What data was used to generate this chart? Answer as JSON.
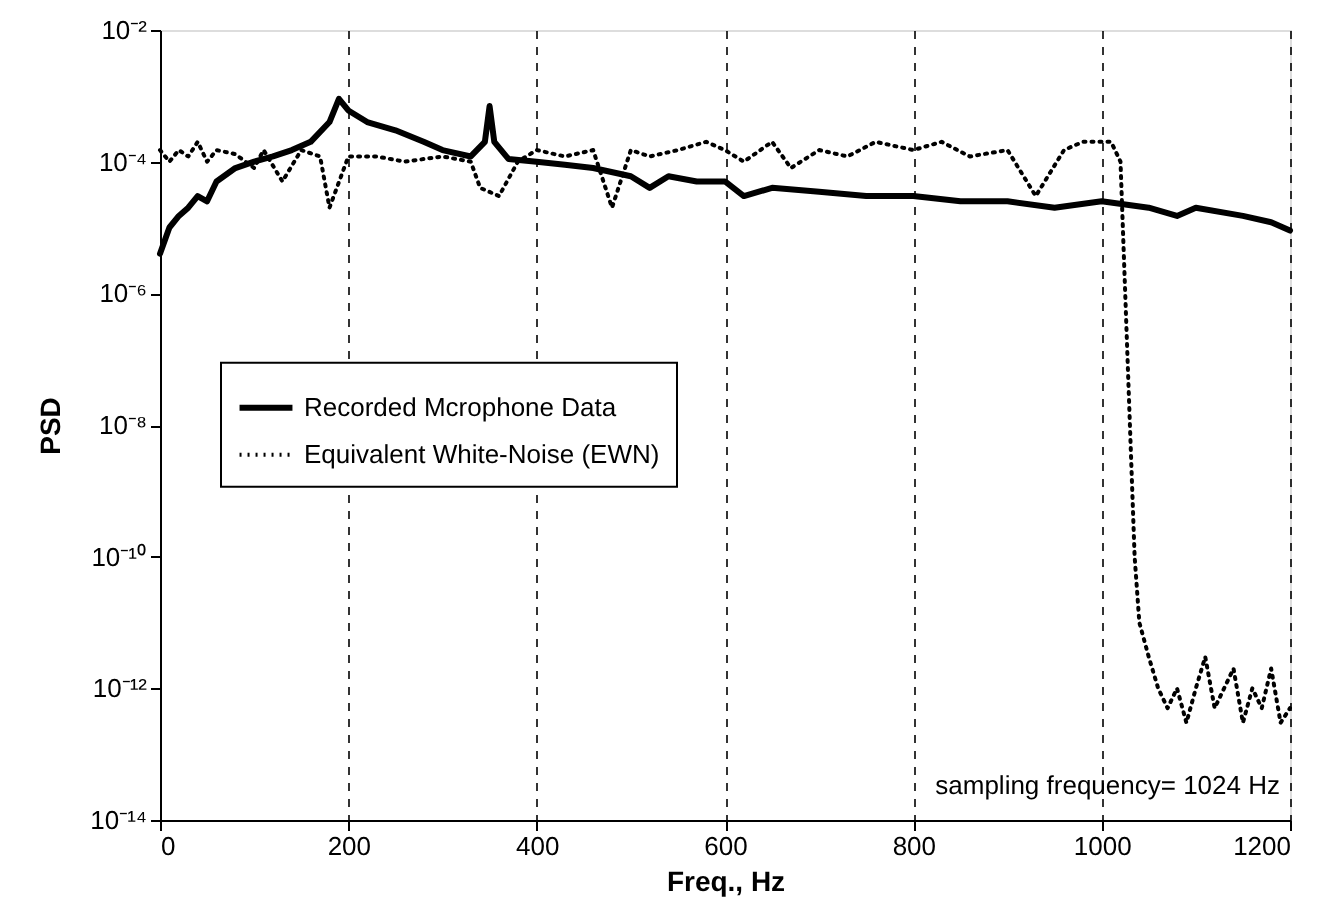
{
  "chart_data": {
    "type": "line",
    "xlabel": "Freq., Hz",
    "ylabel": "PSD",
    "log": "y",
    "xlim": [
      0,
      1200
    ],
    "xticks": [
      0,
      200,
      400,
      600,
      800,
      1000,
      1200
    ],
    "ylim": [
      1e-14,
      0.01
    ],
    "yticks": [
      {
        "value": 1e-14,
        "label": "10⁻¹⁴"
      },
      {
        "value": 1e-12,
        "label": "10⁻¹²"
      },
      {
        "value": 1e-10,
        "label": "10⁻¹⁰"
      },
      {
        "value": 1e-08,
        "label": "10⁻⁸"
      },
      {
        "value": 1e-06,
        "label": "10⁻⁶"
      },
      {
        "value": 0.0001,
        "label": "10⁻⁴"
      },
      {
        "value": 0.01,
        "label": "10⁻²"
      }
    ],
    "grid": "x",
    "legend": "left",
    "annotations": [
      "sampling frequency= 1024 Hz"
    ],
    "series": [
      {
        "name": "Recorded Mcrophone Data",
        "color": "#000000",
        "line_style": "solid",
        "x": [
          0,
          10,
          20,
          30,
          40,
          50,
          60,
          80,
          100,
          120,
          140,
          160,
          180,
          190,
          200,
          220,
          250,
          280,
          300,
          330,
          345,
          350,
          355,
          370,
          400,
          430,
          460,
          500,
          520,
          540,
          570,
          600,
          620,
          650,
          700,
          750,
          800,
          850,
          900,
          950,
          1000,
          1050,
          1080,
          1100,
          1150,
          1180,
          1200
        ],
        "values": [
          4e-06,
          1e-05,
          1.5e-05,
          2e-05,
          3e-05,
          2.5e-05,
          5e-05,
          8e-05,
          0.0001,
          0.00012,
          0.00015,
          0.0002,
          0.0004,
          0.0009,
          0.0006,
          0.0004,
          0.0003,
          0.0002,
          0.00015,
          0.00012,
          0.0002,
          0.0007,
          0.0002,
          0.00011,
          0.0001,
          9e-05,
          8e-05,
          6e-05,
          4e-05,
          6e-05,
          5e-05,
          5e-05,
          3e-05,
          4e-05,
          3.5e-05,
          3e-05,
          3e-05,
          2.5e-05,
          2.5e-05,
          2e-05,
          2.5e-05,
          2e-05,
          1.5e-05,
          2e-05,
          1.5e-05,
          1.2e-05,
          9e-06
        ]
      },
      {
        "name": "Equivalent White-Noise (EWN)",
        "color": "#000000",
        "line_style": "dotted",
        "x": [
          0,
          10,
          20,
          30,
          40,
          50,
          60,
          80,
          100,
          110,
          130,
          150,
          170,
          180,
          200,
          230,
          260,
          300,
          330,
          340,
          360,
          380,
          400,
          430,
          460,
          480,
          500,
          520,
          550,
          580,
          600,
          620,
          650,
          670,
          700,
          730,
          760,
          800,
          830,
          860,
          900,
          930,
          960,
          980,
          1000,
          1010,
          1020,
          1025,
          1030,
          1035,
          1040,
          1050,
          1060,
          1070,
          1080,
          1090,
          1100,
          1110,
          1120,
          1130,
          1140,
          1150,
          1160,
          1170,
          1180,
          1190,
          1200
        ],
        "values": [
          0.00015,
          0.0001,
          0.00015,
          0.00012,
          0.0002,
          0.0001,
          0.00015,
          0.00013,
          8e-05,
          0.00015,
          5e-05,
          0.00015,
          0.00012,
          2e-05,
          0.00012,
          0.00012,
          0.0001,
          0.00012,
          0.0001,
          4e-05,
          3e-05,
          0.0001,
          0.00015,
          0.00012,
          0.00015,
          2e-05,
          0.00015,
          0.00012,
          0.00015,
          0.0002,
          0.00015,
          0.0001,
          0.0002,
          8e-05,
          0.00015,
          0.00012,
          0.0002,
          0.00015,
          0.0002,
          0.00012,
          0.00015,
          3e-05,
          0.00015,
          0.0002,
          0.0002,
          0.0002,
          0.0001,
          1e-06,
          1e-08,
          1e-10,
          1e-11,
          3e-12,
          1e-12,
          5e-13,
          1e-12,
          3e-13,
          1e-12,
          3e-12,
          5e-13,
          1e-12,
          2e-12,
          3e-13,
          1e-12,
          5e-13,
          2e-12,
          3e-13,
          5e-13
        ]
      }
    ]
  }
}
